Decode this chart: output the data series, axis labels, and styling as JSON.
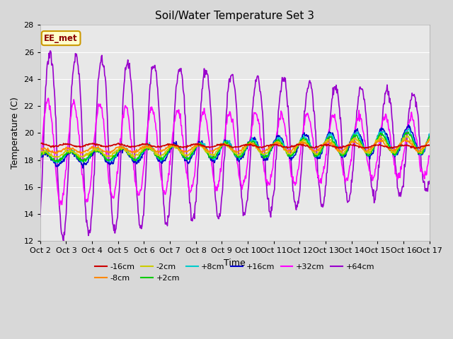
{
  "title": "Soil/Water Temperature Set 3",
  "xlabel": "Time",
  "ylabel": "Temperature (C)",
  "ylim": [
    12,
    28
  ],
  "xlim": [
    0,
    15
  ],
  "yticks": [
    12,
    14,
    16,
    18,
    20,
    22,
    24,
    26,
    28
  ],
  "xtick_labels": [
    "Oct 2",
    "Oct 3",
    "Oct 4",
    "Oct 5",
    "Oct 6",
    "Oct 7",
    "Oct 8",
    "Oct 9",
    "Oct 10",
    "Oct 11",
    "Oct 12",
    "Oct 13",
    "Oct 14",
    "Oct 15",
    "Oct 16",
    "Oct 17"
  ],
  "fig_bg": "#d8d8d8",
  "plot_bg": "#e8e8e8",
  "grid_color": "#ffffff",
  "annotation_text": "EE_met",
  "annotation_bg": "#ffffcc",
  "annotation_border": "#cc9900",
  "series": {
    "-16cm": {
      "color": "#cc0000",
      "lw": 1.2
    },
    "-8cm": {
      "color": "#ff8800",
      "lw": 1.2
    },
    "-2cm": {
      "color": "#cccc00",
      "lw": 1.2
    },
    "+2cm": {
      "color": "#00cc00",
      "lw": 1.2
    },
    "+8cm": {
      "color": "#00cccc",
      "lw": 1.2
    },
    "+16cm": {
      "color": "#0000cc",
      "lw": 1.2
    },
    "+32cm": {
      "color": "#ff00ff",
      "lw": 1.2
    },
    "+64cm": {
      "color": "#9900cc",
      "lw": 1.2
    }
  }
}
